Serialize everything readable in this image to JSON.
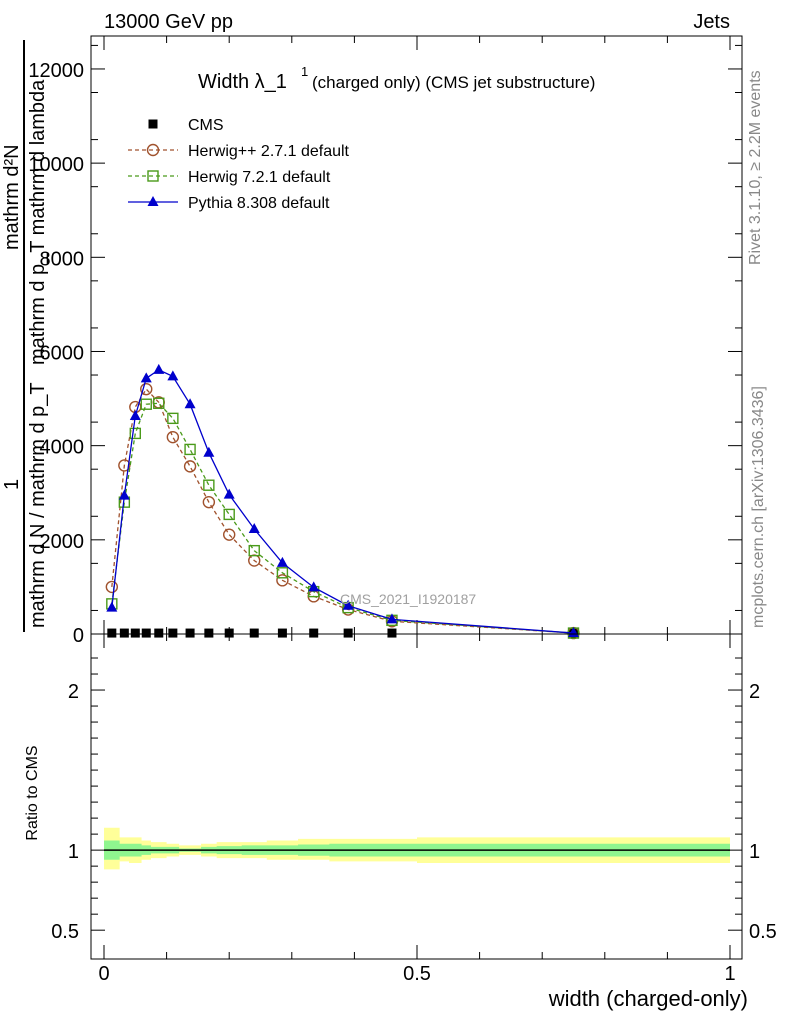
{
  "header": {
    "energy": "13000 GeV pp",
    "category": "Jets"
  },
  "side_labels": {
    "rivet": "Rivet 3.1.10, ≥ 2.2M events",
    "mcplots": "mcplots.cern.ch [arXiv:1306.3436]"
  },
  "watermark": "CMS_2021_I1920187",
  "colors": {
    "cms": "#000000",
    "herwigpp": "#a0522d",
    "herwig7": "#4a9a1a",
    "pythia": "#0000cc",
    "band_outer": "#ffff99",
    "band_inner": "#8ff58f"
  },
  "chart_data": [
    {
      "type": "line",
      "title": "Width λ_1",
      "title_sup": "1",
      "title_suffix": "(charged only) (CMS jet substructure)",
      "ylabel_fraction": {
        "numerator": "1",
        "denominator": "mathrm d N / mathrm d p_T"
      },
      "ylabel_inner": {
        "numerator": "mathrm d²N",
        "denominator": "mathrm d p_T mathrm d lambda"
      },
      "xlim": [
        0,
        1
      ],
      "ylim": [
        0,
        12700
      ],
      "yticks": [
        0,
        2000,
        4000,
        6000,
        8000,
        10000,
        12000
      ],
      "ytick_labels": [
        "0",
        "2000",
        "4000",
        "6000",
        "8000",
        "10000",
        "12000"
      ],
      "x": [
        0.0125,
        0.0325,
        0.05,
        0.0675,
        0.0875,
        0.11,
        0.1375,
        0.1675,
        0.2,
        0.24,
        0.285,
        0.335,
        0.39,
        0.46,
        0.75
      ],
      "series": [
        {
          "name": "CMS",
          "marker": "square",
          "values": [
            20,
            20,
            20,
            20,
            20,
            20,
            20,
            20,
            20,
            20,
            20,
            20,
            20,
            20,
            20
          ]
        },
        {
          "name": "Herwig++ 2.7.1 default",
          "marker": "circle",
          "values": [
            1000,
            3580,
            4820,
            5200,
            4920,
            4180,
            3560,
            2800,
            2110,
            1560,
            1140,
            800,
            520,
            270,
            20
          ]
        },
        {
          "name": "Herwig 7.2.1 default",
          "marker": "square-open",
          "values": [
            640,
            2800,
            4260,
            4880,
            4900,
            4580,
            3920,
            3160,
            2540,
            1770,
            1300,
            900,
            560,
            290,
            20
          ]
        },
        {
          "name": "Pythia 8.308 default",
          "marker": "triangle",
          "values": [
            560,
            2940,
            4630,
            5430,
            5610,
            5470,
            4880,
            3850,
            2960,
            2230,
            1510,
            990,
            600,
            310,
            20
          ]
        }
      ]
    },
    {
      "type": "area",
      "ylabel": "Ratio to CMS",
      "xlabel": "width (charged-only)",
      "xlim": [
        0,
        1
      ],
      "ylim": [
        0.32,
        2.35
      ],
      "yticks": [
        0.5,
        1,
        2
      ],
      "ytick_labels": [
        "0.5",
        "1",
        "2"
      ],
      "xticks": [
        0,
        0.5,
        1
      ],
      "xtick_labels": [
        "0",
        "0.5",
        "1"
      ],
      "bins": [
        0,
        0.025,
        0.04,
        0.06,
        0.075,
        0.1,
        0.12,
        0.155,
        0.18,
        0.22,
        0.26,
        0.31,
        0.36,
        0.42,
        0.5,
        1.0
      ],
      "band_outer": [
        [
          0.88,
          1.14
        ],
        [
          0.93,
          1.08
        ],
        [
          0.92,
          1.08
        ],
        [
          0.94,
          1.06
        ],
        [
          0.95,
          1.05
        ],
        [
          0.96,
          1.04
        ],
        [
          0.97,
          1.03
        ],
        [
          0.96,
          1.04
        ],
        [
          0.95,
          1.05
        ],
        [
          0.95,
          1.05
        ],
        [
          0.94,
          1.06
        ],
        [
          0.94,
          1.07
        ],
        [
          0.93,
          1.07
        ],
        [
          0.93,
          1.07
        ],
        [
          0.92,
          1.08
        ]
      ],
      "band_inner": [
        [
          0.94,
          1.06
        ],
        [
          0.96,
          1.04
        ],
        [
          0.96,
          1.04
        ],
        [
          0.97,
          1.03
        ],
        [
          0.98,
          1.02
        ],
        [
          0.98,
          1.02
        ],
        [
          0.99,
          1.01
        ],
        [
          0.98,
          1.02
        ],
        [
          0.975,
          1.025
        ],
        [
          0.97,
          1.03
        ],
        [
          0.97,
          1.03
        ],
        [
          0.965,
          1.035
        ],
        [
          0.96,
          1.04
        ],
        [
          0.96,
          1.04
        ],
        [
          0.96,
          1.04
        ]
      ],
      "reference": 1.0
    }
  ]
}
